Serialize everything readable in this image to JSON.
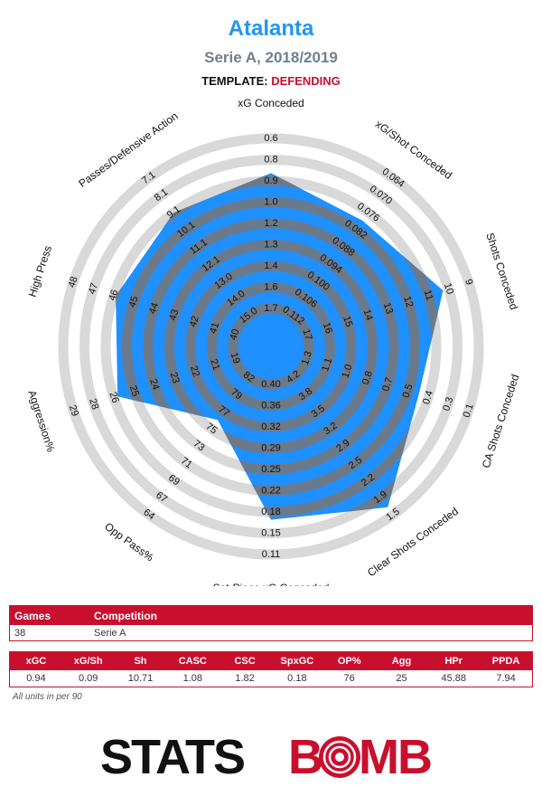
{
  "header": {
    "title": "Atalanta",
    "subtitle": "Serie A, 2018/2019",
    "template_label": "TEMPLATE:",
    "template_value": "DEFENDING"
  },
  "colors": {
    "title": "#2196f3",
    "accent_red": "#c8102e",
    "polygon_fill": "#1e90ff",
    "band_gray": "#d9d9d9",
    "overlay_gray": "#6b7a8a"
  },
  "chart_data": {
    "type": "radar",
    "axes": [
      {
        "label": "xG Conceded",
        "ticks": [
          "0.6",
          "0.8",
          "0.9",
          "1.0",
          "1.2",
          "1.3",
          "1.4",
          "1.6",
          "1.7"
        ],
        "value": 0.94
      },
      {
        "label": "xG/Shot Conceded",
        "ticks": [
          "0.064",
          "0.070",
          "0.076",
          "0.082",
          "0.088",
          "0.094",
          "0.100",
          "0.106",
          "0.112"
        ],
        "value": 0.09
      },
      {
        "label": "Shots Conceded",
        "ticks": [
          "9",
          "10",
          "11",
          "12",
          "13",
          "14",
          "15",
          "16",
          "17"
        ],
        "value": 10.71
      },
      {
        "label": "CA Shots Conceded",
        "ticks": [
          "0.1",
          "0.3",
          "0.4",
          "0.5",
          "0.7",
          "0.8",
          "1.0",
          "1.1",
          "1.3"
        ],
        "value": 1.08
      },
      {
        "label": "Clear Shots Conceded",
        "ticks": [
          "1.5",
          "1.9",
          "2.2",
          "2.5",
          "2.9",
          "3.2",
          "3.5",
          "3.8",
          "4.2"
        ],
        "value": 1.82
      },
      {
        "label": "Set-Piece xG Conceded",
        "ticks": [
          "0.11",
          "0.15",
          "0.18",
          "0.22",
          "0.25",
          "0.29",
          "0.32",
          "0.36",
          "0.40"
        ],
        "value": 0.18
      },
      {
        "label": "Opp Pass%",
        "ticks": [
          "64",
          "67",
          "69",
          "71",
          "73",
          "75",
          "77",
          "79",
          "82"
        ],
        "value": 76
      },
      {
        "label": "Aggression%",
        "ticks": [
          "29",
          "28",
          "26",
          "25",
          "24",
          "23",
          "22",
          "21",
          "19"
        ],
        "value": 25
      },
      {
        "label": "High Press",
        "ticks": [
          "48",
          "47",
          "46",
          "45",
          "44",
          "43",
          "42",
          "41",
          "40"
        ],
        "value": 45.88
      },
      {
        "label": "Passes/Defensive Action",
        "ticks": [
          "7.1",
          "8.1",
          "9.1",
          "10.1",
          "11.1",
          "12.1",
          "13.0",
          "14.0",
          "15.0"
        ],
        "value": 7.94
      }
    ],
    "radial_fractions": [
      0.8,
      0.71,
      0.84,
      0.71,
      0.93,
      0.8,
      0.38,
      0.74,
      0.75,
      0.76
    ]
  },
  "table_info": {
    "headers": [
      "Games",
      "Competition"
    ],
    "row": [
      "38",
      "Serie A"
    ]
  },
  "table_stats": {
    "headers": [
      "xGC",
      "xG/Sh",
      "Sh",
      "CASC",
      "CSC",
      "SpxGC",
      "OP%",
      "Agg",
      "HPr",
      "PPDA"
    ],
    "values": [
      "0.94",
      "0.09",
      "10.71",
      "1.08",
      "1.82",
      "0.18",
      "76",
      "25",
      "45.88",
      "7.94"
    ]
  },
  "note": "All units in per 90",
  "logo": {
    "part1": "STATS",
    "part2": "B",
    "part3": "MB"
  }
}
